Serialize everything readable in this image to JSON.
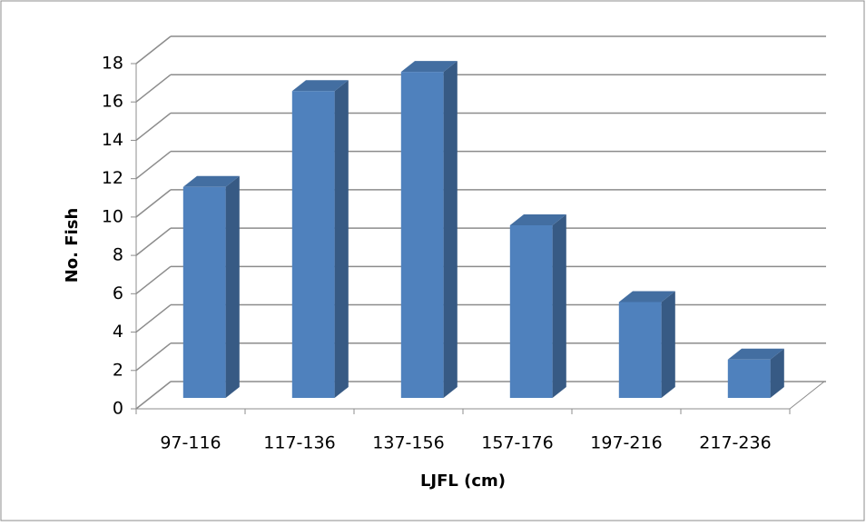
{
  "chart_data": {
    "type": "bar3d",
    "x_label": "LJFL (cm)",
    "y_label": "No. Fish",
    "categories": [
      "97-116",
      "117-136",
      "137-156",
      "157-176",
      "197-216",
      "217-236"
    ],
    "values": [
      11,
      16,
      17,
      9,
      5,
      2
    ],
    "color": "#4f81bd",
    "ylim": [
      0,
      18
    ],
    "yticks": [
      0,
      2,
      4,
      6,
      8,
      10,
      12,
      14,
      16,
      18
    ],
    "grid": true
  }
}
